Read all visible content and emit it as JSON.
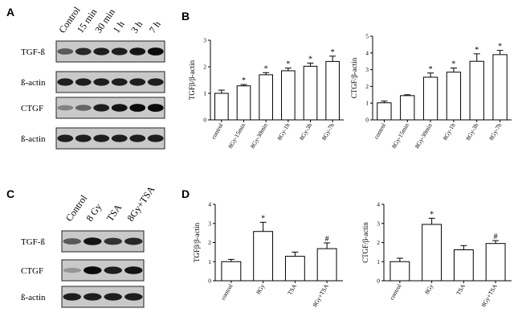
{
  "panels": {
    "a": "A",
    "b": "B",
    "c": "C",
    "d": "D"
  },
  "blot_a": {
    "lanes": [
      "Control",
      "15 min",
      "30 min",
      "1 h",
      "3 h",
      "7 h"
    ],
    "rows": [
      {
        "label": "TGF-ß",
        "intensities": [
          0.55,
          0.8,
          0.85,
          0.85,
          0.9,
          0.95
        ]
      },
      {
        "label": "ß-actin",
        "intensities": [
          0.85,
          0.85,
          0.85,
          0.85,
          0.85,
          0.85
        ]
      },
      {
        "label": "CTGF",
        "intensities": [
          0.35,
          0.5,
          0.85,
          0.9,
          0.95,
          0.95
        ]
      },
      {
        "label": "ß-actin",
        "intensities": [
          0.85,
          0.85,
          0.85,
          0.85,
          0.85,
          0.85
        ]
      }
    ]
  },
  "blot_c": {
    "lanes": [
      "Control",
      "8 Gy",
      "TSA",
      "8Gy+TSA"
    ],
    "rows": [
      {
        "label": "TGF-ß",
        "intensities": [
          0.55,
          0.9,
          0.75,
          0.8
        ]
      },
      {
        "label": "CTGF",
        "intensities": [
          0.25,
          0.95,
          0.85,
          0.9
        ]
      },
      {
        "label": "ß-actin",
        "intensities": [
          0.85,
          0.85,
          0.85,
          0.85
        ]
      }
    ]
  },
  "chart_data": [
    {
      "id": "B-left",
      "type": "bar",
      "title": "",
      "ylabel": "TGFβ/β-actin",
      "categories": [
        "control",
        "8Gy-15min",
        "8Gy-30min",
        "8Gy-1h",
        "8Gy-3h",
        "8Gy-7h"
      ],
      "values": [
        1.0,
        1.28,
        1.7,
        1.85,
        2.02,
        2.2
      ],
      "errors": [
        0.12,
        0.05,
        0.08,
        0.1,
        0.12,
        0.2
      ],
      "annotations": [
        "",
        "*",
        "*",
        "*",
        "*",
        "*"
      ],
      "ylim": [
        0,
        3
      ],
      "yticks": [
        "0",
        "1",
        "2",
        "3"
      ]
    },
    {
      "id": "B-right",
      "type": "bar",
      "title": "",
      "ylabel": "CTGF/β-actin",
      "categories": [
        "control",
        "8Gy-15min",
        "8Gy-30min",
        "8Gy-1h",
        "8Gy-3h",
        "8Gy-7h"
      ],
      "values": [
        1.02,
        1.45,
        2.55,
        2.85,
        3.5,
        3.9
      ],
      "errors": [
        0.1,
        0.05,
        0.25,
        0.25,
        0.45,
        0.25
      ],
      "annotations": [
        "",
        "",
        "*",
        "*",
        "*",
        "*"
      ],
      "ylim": [
        0,
        5
      ],
      "yticks": [
        "0",
        "1",
        "2",
        "3",
        "4",
        "5"
      ]
    },
    {
      "id": "D-left",
      "type": "bar",
      "title": "",
      "ylabel": "TGFβ/β-actin",
      "categories": [
        "control",
        "8Gy",
        "TSA",
        "8Gy+TSA"
      ],
      "values": [
        1.0,
        2.58,
        1.28,
        1.68
      ],
      "errors": [
        0.12,
        0.48,
        0.22,
        0.3
      ],
      "annotations": [
        "",
        "*",
        "",
        "#"
      ],
      "ylim": [
        0,
        4
      ],
      "yticks": [
        "0",
        "1",
        "2",
        "3",
        "4"
      ]
    },
    {
      "id": "D-right",
      "type": "bar",
      "title": "",
      "ylabel": "CTGF/β-actin",
      "categories": [
        "control",
        "8Gy",
        "TSA",
        "8Gy+TSA"
      ],
      "values": [
        1.0,
        2.95,
        1.62,
        1.95
      ],
      "errors": [
        0.18,
        0.32,
        0.22,
        0.15
      ],
      "annotations": [
        "",
        "*",
        "",
        "#"
      ],
      "ylim": [
        0,
        4
      ],
      "yticks": [
        "0",
        "1",
        "2",
        "3",
        "4"
      ]
    }
  ]
}
